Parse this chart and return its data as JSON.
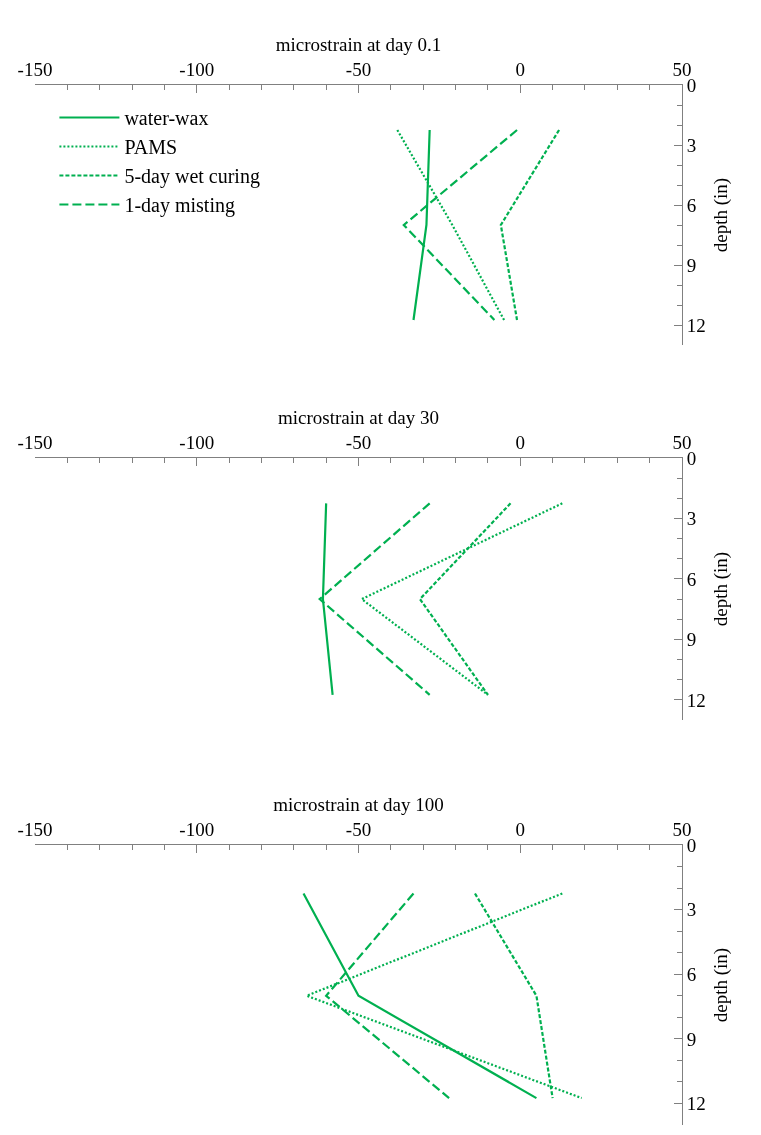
{
  "chart_data": [
    {
      "type": "line",
      "xlabel": "microstrain at day 0.1",
      "ylabel": "depth (in)",
      "legend": "top left",
      "xlim": [
        -150,
        50
      ],
      "xticks": [
        -150,
        {
          "value": -140,
          "label": null
        },
        {
          "value": -130,
          "label": null
        },
        {
          "value": -120,
          "label": null
        },
        {
          "value": -110,
          "label": null
        },
        -100,
        {
          "value": -90,
          "label": null
        },
        {
          "value": -80,
          "label": null
        },
        {
          "value": -70,
          "label": null
        },
        {
          "value": -60,
          "label": null
        },
        -50,
        {
          "value": -40,
          "label": null
        },
        {
          "value": -30,
          "label": null
        },
        {
          "value": -20,
          "label": null
        },
        {
          "value": -10,
          "label": null
        },
        0,
        {
          "value": 10,
          "label": null
        },
        {
          "value": 20,
          "label": null
        },
        {
          "value": 30,
          "label": null
        },
        {
          "value": 40,
          "label": null
        },
        50
      ],
      "ylim": [
        13,
        0
      ],
      "yticks": [
        0,
        {
          "value": 1,
          "label": null
        },
        {
          "value": 2,
          "label": null
        },
        3,
        {
          "value": 4,
          "label": null
        },
        {
          "value": 5,
          "label": null
        },
        6,
        {
          "value": 7,
          "label": null
        },
        {
          "value": 8,
          "label": null
        },
        9,
        {
          "value": 10,
          "label": null
        },
        {
          "value": 11,
          "label": null
        },
        12
      ],
      "series": [
        {
          "name": "water-wax",
          "color": "#00b050",
          "line_style": "solid",
          "x": [
            -28,
            -29,
            -33
          ],
          "values": [
            2.25,
            7,
            11.75
          ]
        },
        {
          "name": "PAMS",
          "color": "#00b050",
          "line_style": "dotted",
          "x": [
            -38,
            -21,
            -5
          ],
          "values": [
            2.25,
            7,
            11.75
          ]
        },
        {
          "name": "5-day wet curing",
          "color": "#00b050",
          "line_style": "dashed",
          "x": [
            12,
            -6,
            -1
          ],
          "values": [
            2.25,
            7,
            11.75
          ]
        },
        {
          "name": "1-day misting",
          "color": "#00b050",
          "line_style": "longdash",
          "x": [
            -1,
            -36,
            -8
          ],
          "values": [
            2.25,
            7,
            11.75
          ]
        }
      ]
    },
    {
      "type": "line",
      "xlabel": "microstrain at day 30",
      "ylabel": "depth (in)",
      "xlim": [
        -150,
        50
      ],
      "xticks": [
        -150,
        {
          "value": -140,
          "label": null
        },
        {
          "value": -130,
          "label": null
        },
        {
          "value": -120,
          "label": null
        },
        {
          "value": -110,
          "label": null
        },
        -100,
        {
          "value": -90,
          "label": null
        },
        {
          "value": -80,
          "label": null
        },
        {
          "value": -70,
          "label": null
        },
        {
          "value": -60,
          "label": null
        },
        -50,
        {
          "value": -40,
          "label": null
        },
        {
          "value": -30,
          "label": null
        },
        {
          "value": -20,
          "label": null
        },
        {
          "value": -10,
          "label": null
        },
        0,
        {
          "value": 10,
          "label": null
        },
        {
          "value": 20,
          "label": null
        },
        {
          "value": 30,
          "label": null
        },
        {
          "value": 40,
          "label": null
        },
        50
      ],
      "ylim": [
        13,
        0
      ],
      "yticks": [
        0,
        {
          "value": 1,
          "label": null
        },
        {
          "value": 2,
          "label": null
        },
        3,
        {
          "value": 4,
          "label": null
        },
        {
          "value": 5,
          "label": null
        },
        6,
        {
          "value": 7,
          "label": null
        },
        {
          "value": 8,
          "label": null
        },
        9,
        {
          "value": 10,
          "label": null
        },
        {
          "value": 11,
          "label": null
        },
        12
      ],
      "series": [
        {
          "color": "#00b050",
          "line_style": "solid",
          "x": [
            -60,
            -61,
            -58
          ],
          "values": [
            2.25,
            7,
            11.75
          ]
        },
        {
          "color": "#00b050",
          "line_style": "dotted",
          "x": [
            13,
            -49,
            -10
          ],
          "values": [
            2.25,
            7,
            11.75
          ]
        },
        {
          "color": "#00b050",
          "line_style": "dashed",
          "x": [
            -3,
            -31,
            -10
          ],
          "values": [
            2.25,
            7,
            11.75
          ]
        },
        {
          "color": "#00b050",
          "line_style": "longdash",
          "x": [
            -28,
            -62,
            -28
          ],
          "values": [
            2.25,
            7,
            11.75
          ]
        }
      ]
    },
    {
      "type": "line",
      "xlabel": "microstrain at day 100",
      "ylabel": "depth (in)",
      "xlim": [
        -150,
        50
      ],
      "xticks": [
        -150,
        {
          "value": -140,
          "label": null
        },
        {
          "value": -130,
          "label": null
        },
        {
          "value": -120,
          "label": null
        },
        {
          "value": -110,
          "label": null
        },
        -100,
        {
          "value": -90,
          "label": null
        },
        {
          "value": -80,
          "label": null
        },
        {
          "value": -70,
          "label": null
        },
        {
          "value": -60,
          "label": null
        },
        -50,
        {
          "value": -40,
          "label": null
        },
        {
          "value": -30,
          "label": null
        },
        {
          "value": -20,
          "label": null
        },
        {
          "value": -10,
          "label": null
        },
        0,
        {
          "value": 10,
          "label": null
        },
        {
          "value": 20,
          "label": null
        },
        {
          "value": 30,
          "label": null
        },
        {
          "value": 40,
          "label": null
        },
        50
      ],
      "ylim": [
        13,
        0
      ],
      "yticks": [
        0,
        {
          "value": 1,
          "label": null
        },
        {
          "value": 2,
          "label": null
        },
        3,
        {
          "value": 4,
          "label": null
        },
        {
          "value": 5,
          "label": null
        },
        6,
        {
          "value": 7,
          "label": null
        },
        {
          "value": 8,
          "label": null
        },
        9,
        {
          "value": 10,
          "label": null
        },
        {
          "value": 11,
          "label": null
        },
        12
      ],
      "series": [
        {
          "color": "#00b050",
          "line_style": "solid",
          "x": [
            -67,
            -50,
            5
          ],
          "values": [
            2.25,
            7,
            11.75
          ]
        },
        {
          "color": "#00b050",
          "line_style": "dotted",
          "x": [
            13,
            -66,
            19
          ],
          "values": [
            2.25,
            7,
            11.75
          ]
        },
        {
          "color": "#00b050",
          "line_style": "dashed",
          "x": [
            -14,
            5,
            10
          ],
          "values": [
            2.25,
            7,
            11.75
          ]
        },
        {
          "color": "#00b050",
          "line_style": "longdash",
          "x": [
            -33,
            -60,
            -22
          ],
          "values": [
            2.25,
            7,
            11.75
          ]
        }
      ]
    }
  ]
}
